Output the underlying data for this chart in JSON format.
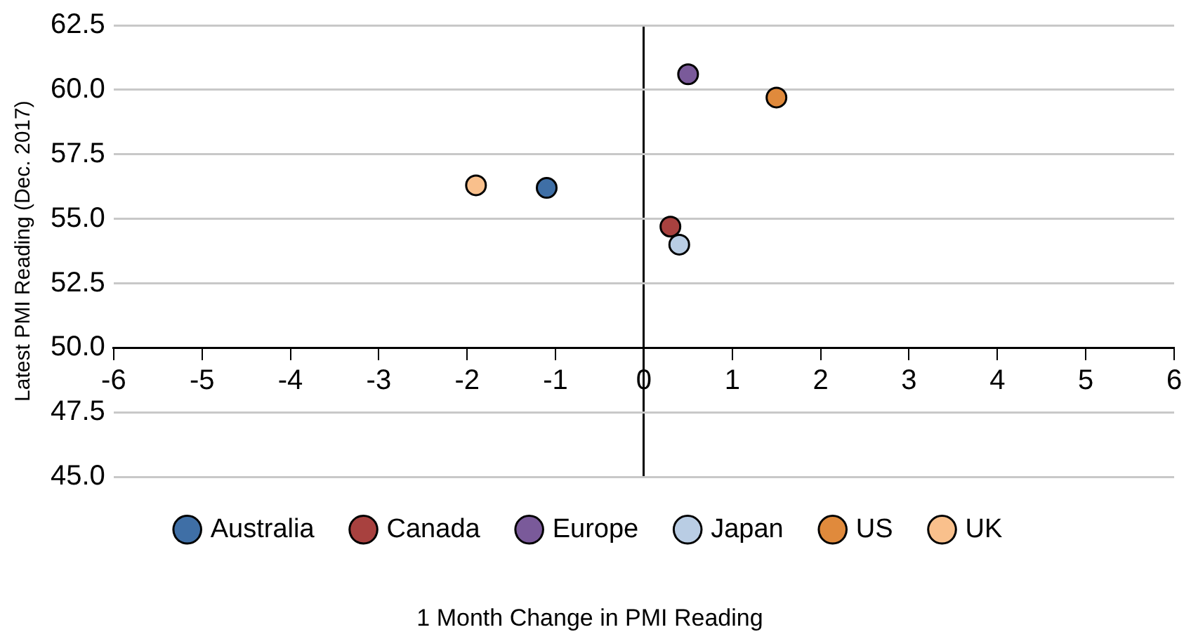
{
  "chart_data": {
    "type": "scatter",
    "xlabel": "1 Month Change in PMI Reading",
    "ylabel": "Latest PMI Reading (Dec. 2017)",
    "xlim": [
      -6,
      6
    ],
    "xticks": [
      -6,
      -5,
      -4,
      -3,
      -2,
      -1,
      0,
      1,
      2,
      3,
      4,
      5,
      6
    ],
    "ylim": [
      45,
      62.5
    ],
    "yticks": [
      {
        "value": 45,
        "label": "45.0"
      },
      {
        "value": 47.5,
        "label": "47.5"
      },
      {
        "value": 50,
        "label": "50.0"
      },
      {
        "value": 52.5,
        "label": "52.5"
      },
      {
        "value": 55,
        "label": "55.0"
      },
      {
        "value": 57.5,
        "label": "57.5"
      },
      {
        "value": 60,
        "label": "60.0"
      },
      {
        "value": 62.5,
        "label": "62.5"
      }
    ],
    "grid": "y",
    "legend": "bottom",
    "marker": "circle",
    "series": [
      {
        "name": "Australia",
        "color": "#3f6fa6",
        "x": [
          -1.1
        ],
        "values": [
          56.2
        ]
      },
      {
        "name": "Canada",
        "color": "#a8413f",
        "x": [
          0.3
        ],
        "values": [
          54.7
        ]
      },
      {
        "name": "Europe",
        "color": "#7a5a9a",
        "x": [
          0.5
        ],
        "values": [
          60.6
        ]
      },
      {
        "name": "Japan",
        "color": "#b9cde4",
        "x": [
          0.4
        ],
        "values": [
          54.0
        ]
      },
      {
        "name": "US",
        "color": "#e08a3c",
        "x": [
          1.5
        ],
        "values": [
          59.7
        ]
      },
      {
        "name": "UK",
        "color": "#f9c08c",
        "x": [
          -1.9
        ],
        "values": [
          56.3
        ]
      }
    ]
  }
}
